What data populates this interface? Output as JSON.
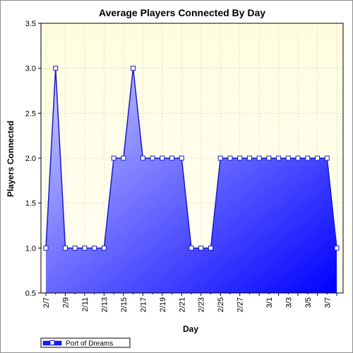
{
  "chart_data": {
    "type": "area",
    "title": "Average Players Connected By Day",
    "xlabel": "Day",
    "ylabel": "Players Connected",
    "ylim": [
      0.5,
      3.5
    ],
    "yticks": [
      "0.5",
      "1.0",
      "1.5",
      "2.0",
      "2.5",
      "3.0",
      "3.5"
    ],
    "x": [
      "2/7",
      "2/8",
      "2/9",
      "2/10",
      "2/11",
      "2/12",
      "2/13",
      "2/14",
      "2/15",
      "2/16",
      "2/17",
      "2/18",
      "2/19",
      "2/20",
      "2/21",
      "2/22",
      "2/23",
      "2/24",
      "2/25",
      "2/26",
      "2/27",
      "2/28",
      "2/29",
      "3/1",
      "3/2",
      "3/3",
      "3/4",
      "3/5",
      "3/6",
      "3/7",
      "3/8"
    ],
    "xtick_labels": [
      "2/7",
      "2/9",
      "2/11",
      "2/13",
      "2/15",
      "2/17",
      "2/19",
      "2/21",
      "2/23",
      "2/25",
      "2/27",
      "3/1",
      "3/3",
      "3/5",
      "3/7"
    ],
    "series": [
      {
        "name": "Port of Dreams",
        "values": [
          1,
          3,
          1,
          1,
          1,
          1,
          1,
          2,
          2,
          3,
          2,
          2,
          2,
          2,
          2,
          1,
          1,
          1,
          2,
          2,
          2,
          2,
          2,
          2,
          2,
          2,
          2,
          2,
          2,
          2,
          1
        ]
      }
    ],
    "grid": true,
    "legend_position": "bottom-left",
    "colors": {
      "plot_bg_top": "#fffde0",
      "plot_bg_bottom": "#fffff4",
      "fill_light": "#cfd0ff",
      "fill_dark": "#0000ff",
      "line": "#1a1acc",
      "marker_fill": "#ffffff",
      "grid": "#c8c8a0"
    }
  }
}
